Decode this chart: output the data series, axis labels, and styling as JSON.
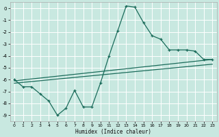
{
  "xlabel": "Humidex (Indice chaleur)",
  "background_color": "#c8e8e0",
  "grid_color": "#ffffff",
  "line_color": "#1a6b5a",
  "xlim": [
    -0.5,
    23.5
  ],
  "ylim": [
    -9.5,
    0.5
  ],
  "xticks": [
    0,
    1,
    2,
    3,
    4,
    5,
    6,
    7,
    8,
    9,
    10,
    11,
    12,
    13,
    14,
    15,
    16,
    17,
    18,
    19,
    20,
    21,
    22,
    23
  ],
  "yticks": [
    0,
    -1,
    -2,
    -3,
    -4,
    -5,
    -6,
    -7,
    -8,
    -9
  ],
  "curve1_x": [
    0,
    1,
    2,
    3,
    4,
    5,
    6,
    7,
    8,
    9,
    10,
    11,
    12,
    13,
    14,
    15,
    16,
    17,
    18,
    19,
    20,
    21,
    22,
    23
  ],
  "curve1_y": [
    -6.0,
    -6.6,
    -6.6,
    -7.2,
    -7.8,
    -9.0,
    -8.4,
    -6.9,
    -8.3,
    -8.3,
    -6.3,
    -4.0,
    -1.9,
    0.2,
    0.1,
    -1.2,
    -2.3,
    -2.6,
    -3.5,
    -3.5,
    -3.5,
    -3.6,
    -4.3,
    -4.3
  ],
  "line1_x": [
    0,
    23
  ],
  "line1_y": [
    -6.1,
    -4.3
  ],
  "line2_x": [
    0,
    23
  ],
  "line2_y": [
    -6.3,
    -4.7
  ]
}
